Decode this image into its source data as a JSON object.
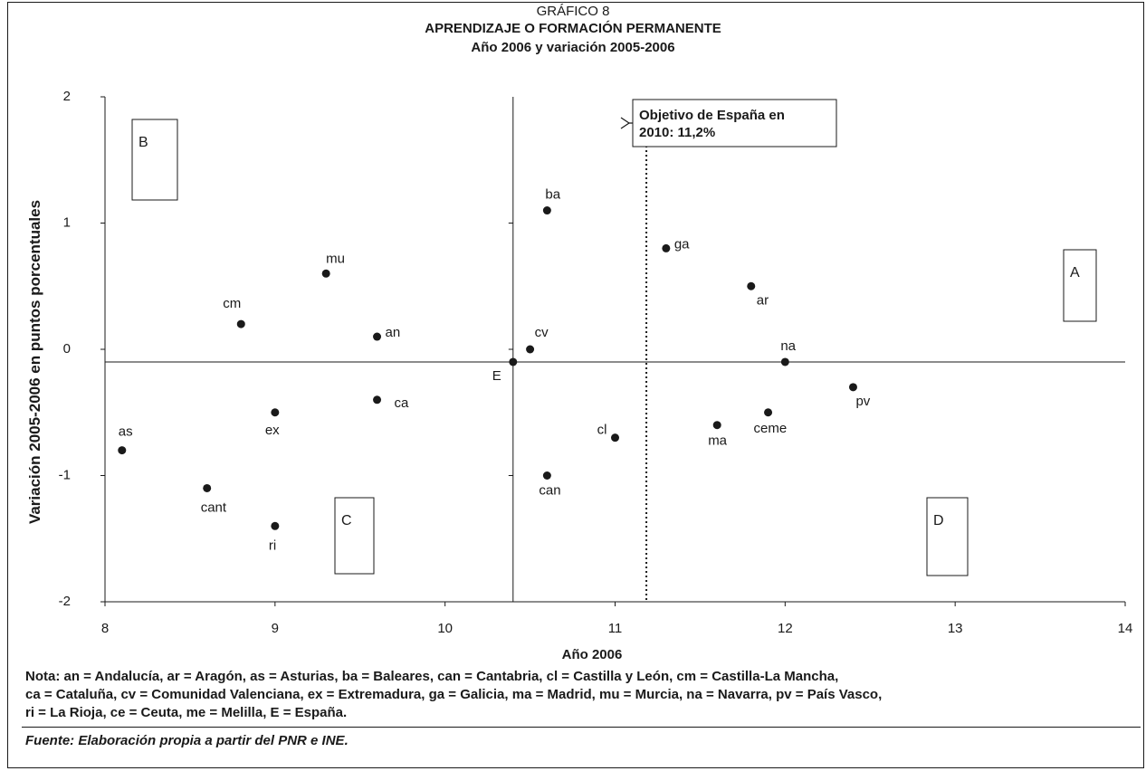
{
  "header": {
    "kicker": "GRÁFICO 8",
    "title": "APRENDIZAJE O FORMACIÓN PERMANENTE",
    "subtitle": "Año 2006 y variación 2005-2006"
  },
  "chart_data": {
    "type": "scatter",
    "xlabel": "Año 2006",
    "ylabel": "Variación 2005-2006 en puntos porcentuales",
    "xlim": [
      8,
      14
    ],
    "ylim": [
      -2,
      2
    ],
    "x_ticks": [
      "8",
      "9",
      "10",
      "11",
      "12",
      "13",
      "14"
    ],
    "y_ticks": [
      "-2",
      "-1",
      "0",
      "1",
      "2"
    ],
    "grid": false,
    "reference_lines": {
      "x": 10.4,
      "y": -0.1
    },
    "target": {
      "x": 11.2,
      "label_line1": "Objetivo de España en",
      "label_line2": "2010: 11,2%"
    },
    "points": [
      {
        "label": "ba",
        "x": 10.6,
        "y": 1.1
      },
      {
        "label": "ga",
        "x": 11.3,
        "y": 0.8
      },
      {
        "label": "ar",
        "x": 11.8,
        "y": 0.5
      },
      {
        "label": "mu",
        "x": 9.3,
        "y": 0.6
      },
      {
        "label": "cm",
        "x": 8.8,
        "y": 0.2
      },
      {
        "label": "an",
        "x": 9.6,
        "y": 0.1
      },
      {
        "label": "cv",
        "x": 10.5,
        "y": 0.0
      },
      {
        "label": "E",
        "x": 10.4,
        "y": -0.1
      },
      {
        "label": "na",
        "x": 12.0,
        "y": -0.1
      },
      {
        "label": "pv",
        "x": 12.4,
        "y": -0.3
      },
      {
        "label": "ca",
        "x": 9.6,
        "y": -0.4
      },
      {
        "label": "ex",
        "x": 9.0,
        "y": -0.5
      },
      {
        "label": "ceme",
        "x": 11.9,
        "y": -0.5
      },
      {
        "label": "ma",
        "x": 11.6,
        "y": -0.6
      },
      {
        "label": "cl",
        "x": 11.0,
        "y": -0.7
      },
      {
        "label": "as",
        "x": 8.1,
        "y": -0.8
      },
      {
        "label": "can",
        "x": 10.6,
        "y": -1.0
      },
      {
        "label": "cant",
        "x": 8.6,
        "y": -1.1
      },
      {
        "label": "ri",
        "x": 9.0,
        "y": -1.4
      }
    ],
    "quadrant_labels": [
      "A",
      "B",
      "C",
      "D"
    ]
  },
  "note": {
    "line1": "Nota: an = Andalucía, ar = Aragón, as = Asturias, ba = Baleares, can = Cantabria, cl = Castilla y León, cm = Castilla-La Mancha,",
    "line2": "ca = Cataluña, cv = Comunidad Valenciana, ex = Extremadura, ga = Galicia, ma = Madrid, mu = Murcia, na = Navarra, pv = País Vasco,",
    "line3": "ri = La Rioja, ce = Ceuta, me = Melilla, E = España."
  },
  "source": "Fuente: Elaboración propia a partir del PNR e INE."
}
